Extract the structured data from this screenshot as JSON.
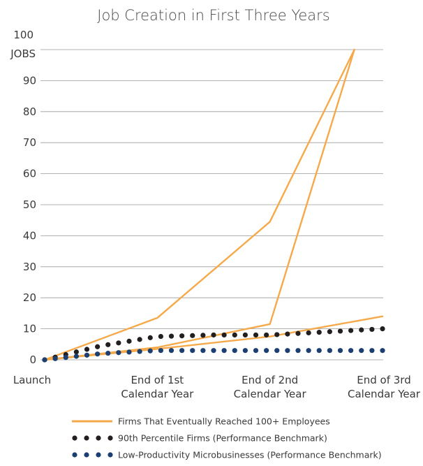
{
  "chart_data": {
    "type": "line",
    "title": "Job Creation in First Three Years",
    "ylabel": "JOBS",
    "ylim": [
      0,
      100
    ],
    "yticks": [
      0,
      10,
      20,
      30,
      40,
      50,
      60,
      70,
      80,
      90,
      100
    ],
    "grid": true,
    "legend_placement": "bottom",
    "x_positions": [
      0,
      1,
      2,
      3
    ],
    "categories": [
      [
        "Launch"
      ],
      [
        "End of 1st",
        "Calendar Year"
      ],
      [
        "End of 2nd",
        "Calendar Year"
      ],
      [
        "End of 3rd",
        "Calendar Year"
      ]
    ],
    "series": [
      {
        "name": "Firms That Eventually Reached 100+ Employees",
        "style": "line",
        "color": "#f5a94b",
        "lines": [
          {
            "x": [
              0,
              1,
              2,
              2.75
            ],
            "y": [
              0,
              13.5,
              44.5,
              100
            ]
          },
          {
            "x": [
              0,
              1,
              2,
              2.75
            ],
            "y": [
              0,
              4,
              11.5,
              100
            ]
          },
          {
            "x": [
              0,
              1,
              2,
              3
            ],
            "y": [
              0,
              3.5,
              7.5,
              14
            ]
          }
        ]
      },
      {
        "name": "90th Percentile Firms (Performance Benchmark)",
        "style": "dots",
        "color": "#231f20",
        "x": [
          0,
          0.5,
          1,
          1.5,
          2,
          2.5,
          3
        ],
        "y": [
          0,
          4.5,
          7.5,
          8,
          8,
          9,
          10
        ]
      },
      {
        "name": "Low-Productivity Microbusinesses (Performance Benchmark)",
        "style": "dots",
        "color": "#1c3f72",
        "x": [
          0,
          0.5,
          1,
          1.5,
          2,
          2.5,
          3
        ],
        "y": [
          0,
          2,
          3,
          3,
          3,
          3,
          3
        ]
      }
    ]
  }
}
